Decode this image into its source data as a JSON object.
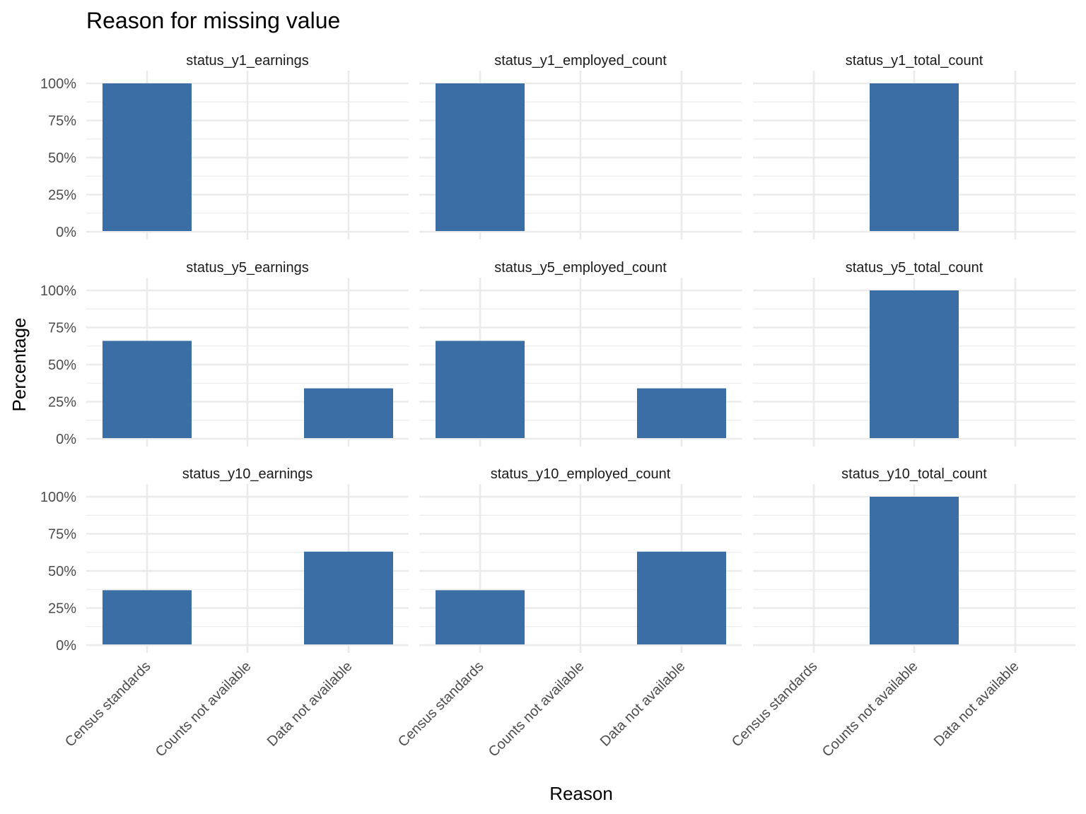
{
  "chart_data": {
    "type": "bar",
    "title": "Reason for missing value",
    "xlabel": "Reason",
    "ylabel": "Percentage",
    "categories": [
      "Census standards",
      "Counts not available",
      "Data not available"
    ],
    "y_ticks": [
      "0%",
      "25%",
      "50%",
      "75%",
      "100%"
    ],
    "ylim": [
      0,
      100
    ],
    "grid": true,
    "bar_color": "#3a6ea5",
    "panels": [
      {
        "name": "status_y1_earnings",
        "values": [
          100,
          0,
          0
        ]
      },
      {
        "name": "status_y1_employed_count",
        "values": [
          100,
          0,
          0
        ]
      },
      {
        "name": "status_y1_total_count",
        "values": [
          0,
          100,
          0
        ]
      },
      {
        "name": "status_y5_earnings",
        "values": [
          66,
          0,
          34
        ]
      },
      {
        "name": "status_y5_employed_count",
        "values": [
          66,
          0,
          34
        ]
      },
      {
        "name": "status_y5_total_count",
        "values": [
          0,
          100,
          0
        ]
      },
      {
        "name": "status_y10_earnings",
        "values": [
          37,
          0,
          63
        ]
      },
      {
        "name": "status_y10_employed_count",
        "values": [
          37,
          0,
          63
        ]
      },
      {
        "name": "status_y10_total_count",
        "values": [
          0,
          100,
          0
        ]
      }
    ]
  }
}
